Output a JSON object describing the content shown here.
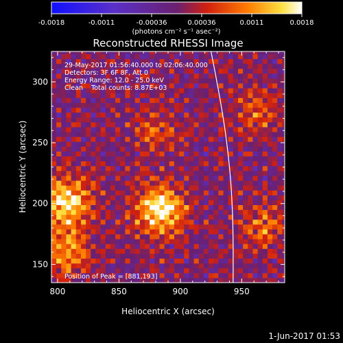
{
  "chart_data": {
    "type": "heatmap",
    "title": "Reconstructed RHESSI Image",
    "xlabel": "Heliocentric X (arcsec)",
    "ylabel": "Heliocentric Y (arcsec)",
    "xlim": [
      795,
      985
    ],
    "ylim": [
      135,
      325
    ],
    "x_ticks": [
      800,
      850,
      900,
      950
    ],
    "y_ticks": [
      150,
      200,
      250,
      300
    ],
    "colorbar": {
      "vmin": -0.0018,
      "vmax": 0.0018,
      "ticks": [
        "-0.0018",
        "-0.0011",
        "-0.00036",
        "0.00036",
        "0.0011",
        "0.0018"
      ],
      "colormap": "blue-purple-red-yellow-white",
      "unit_label": "(photons cm⁻² s⁻¹ asec⁻²)"
    },
    "annotations": [
      "29-May-2017 01:56:40.000 to 02:06:40.000",
      "Detectors: 3F 6F 8F, Att 0",
      "Energy Range: 12.0 - 25.0 keV",
      "Clean    Total counts: 8.87E+03"
    ],
    "peak_label": "Position of Peak = [881,193]",
    "peak_position": [
      881,
      193
    ],
    "sources": [
      {
        "x": 881,
        "y": 193,
        "amp": 0.0018
      },
      {
        "x": 805,
        "y": 200,
        "amp": 0.0016
      },
      {
        "x": 805,
        "y": 160,
        "amp": 0.0011
      },
      {
        "x": 878,
        "y": 258,
        "amp": 0.0006
      },
      {
        "x": 965,
        "y": 180,
        "amp": 0.0008
      },
      {
        "x": 960,
        "y": 275,
        "amp": 0.0007
      }
    ],
    "limb_curve_x_at_ylim": [
      925,
      943
    ]
  },
  "timestamp": "1-Jun-2017 01:53"
}
